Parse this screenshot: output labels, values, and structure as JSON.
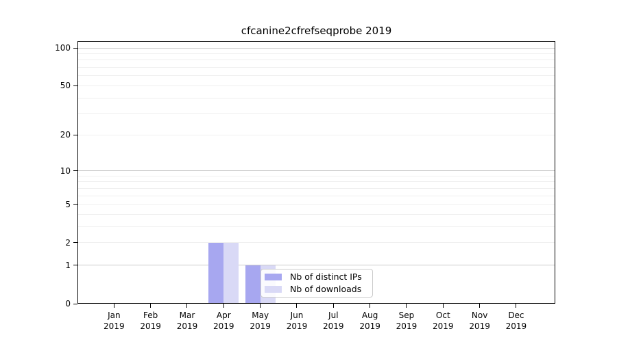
{
  "chart_data": {
    "type": "bar",
    "title": "cfcanine2cfrefseqprobe 2019",
    "categories": [
      "Jan 2019",
      "Feb 2019",
      "Mar 2019",
      "Apr 2019",
      "May 2019",
      "Jun 2019",
      "Jul 2019",
      "Aug 2019",
      "Sep 2019",
      "Oct 2019",
      "Nov 2019",
      "Dec 2019"
    ],
    "series": [
      {
        "name": "Nb of distinct IPs",
        "color": "#a7a7f0",
        "values": [
          0,
          0,
          0,
          2,
          1,
          0,
          0,
          0,
          0,
          0,
          0,
          0
        ]
      },
      {
        "name": "Nb of downloads",
        "color": "#d9d9f6",
        "values": [
          0,
          0,
          0,
          2,
          1,
          0,
          0,
          0,
          0,
          0,
          0,
          0
        ]
      }
    ],
    "yscale": "log1p",
    "ylim": [
      0,
      113.4
    ],
    "xlim": [
      -1,
      12.07
    ],
    "yticks": [
      0,
      1,
      2,
      5,
      10,
      20,
      50,
      100
    ],
    "major_gridlines": [
      1,
      10,
      100
    ],
    "minor_gridlines": [
      2,
      3,
      4,
      5,
      6,
      7,
      8,
      9,
      20,
      30,
      40,
      50,
      60,
      70,
      80,
      90
    ],
    "grid_on": true,
    "legend_position": "inside-bottom-center",
    "colors": {
      "grid_minor": "#efefef",
      "grid_major": "#c9c9c9",
      "axis": "#000000",
      "background": "#ffffff"
    }
  }
}
